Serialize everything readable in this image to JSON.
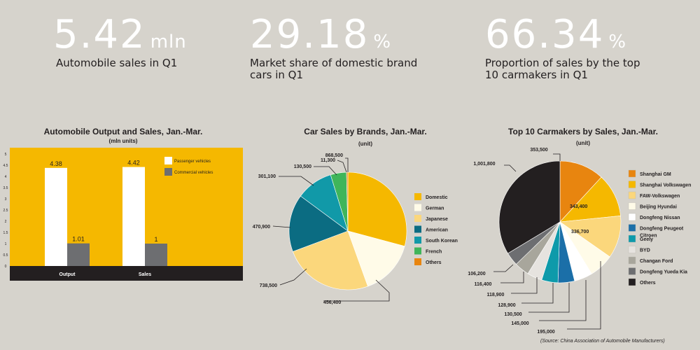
{
  "kpis": [
    {
      "value": "5.42",
      "unit": "mln",
      "label": "Automobile sales in Q1"
    },
    {
      "value": "29.18",
      "unit": "%",
      "label": "Market share of domestic brand cars in Q1"
    },
    {
      "value": "66.34",
      "unit": "%",
      "label": "Proportion of sales by the top 10 carmakers in Q1"
    }
  ],
  "colors": {
    "chart_bg": "#f5b800",
    "passenger": "#ffffff",
    "commercial": "#6d6e71",
    "base": "#231f20"
  },
  "chart_data": [
    {
      "type": "bar",
      "title": "Automobile Output and Sales, Jan.-Mar.",
      "subtitle": "(mln units)",
      "categories": [
        "Output",
        "Sales"
      ],
      "series": [
        {
          "name": "Passenger vehicles",
          "values": [
            4.38,
            4.42
          ]
        },
        {
          "name": "Commercial vehicles",
          "values": [
            1.01,
            1
          ]
        }
      ],
      "value_labels": [
        [
          "4.38",
          "4.42"
        ],
        [
          "1.01",
          "1"
        ]
      ],
      "ylim": [
        0,
        5
      ],
      "yticks": [
        "0",
        "0.5",
        "1",
        "1.5",
        "2",
        "2.5",
        "3",
        "3.5",
        "4",
        "4.5",
        "5"
      ],
      "legend_position": "top-right"
    },
    {
      "type": "pie",
      "title": "Car Sales by Brands, Jan.-Mar.",
      "subtitle": "(unit)",
      "labels": [
        "Domestic",
        "German",
        "Japanese",
        "American",
        "South Korean",
        "French",
        "Others"
      ],
      "values": [
        868500,
        456400,
        738500,
        470900,
        301100,
        130500,
        11300
      ],
      "value_labels": [
        "868,500",
        "456,400",
        "738,500",
        "470,900",
        "301,100",
        "130,500",
        "11,300"
      ],
      "colors": [
        "#f5b800",
        "#fffbe8",
        "#fbd77c",
        "#0b6c82",
        "#1199a8",
        "#3fb55a",
        "#e8850f"
      ]
    },
    {
      "type": "pie",
      "title": "Top 10 Carmakers by Sales, Jan.-Mar.",
      "subtitle": "(unit)",
      "labels": [
        "Shanghai GM",
        "Shanghai Volkswagen",
        "FAW-Volkswagen",
        "Beijing Hyundai",
        "Dongfeng Nissan",
        "Dongfeng Peugeot Citroen",
        "Geely",
        "BYD",
        "Changan Ford",
        "Dongfeng Yueda Kia",
        "Others"
      ],
      "values": [
        353500,
        343400,
        336700,
        195000,
        145000,
        130500,
        128900,
        118900,
        116400,
        106200,
        1001800
      ],
      "value_labels": [
        "353,500",
        "343,400",
        "336,700",
        "195,000",
        "145,000",
        "130,500",
        "128,900",
        "118,900",
        "116,400",
        "106,200",
        "1,001,800"
      ],
      "colors": [
        "#e8850f",
        "#f5b800",
        "#fbd77c",
        "#fffbe8",
        "#ffffff",
        "#1b6fa8",
        "#0e9aaa",
        "#e6e3df",
        "#a8a69c",
        "#6d6e71",
        "#231f20"
      ]
    }
  ],
  "source": "(Source: China Association of Automobile Manufacturers)"
}
